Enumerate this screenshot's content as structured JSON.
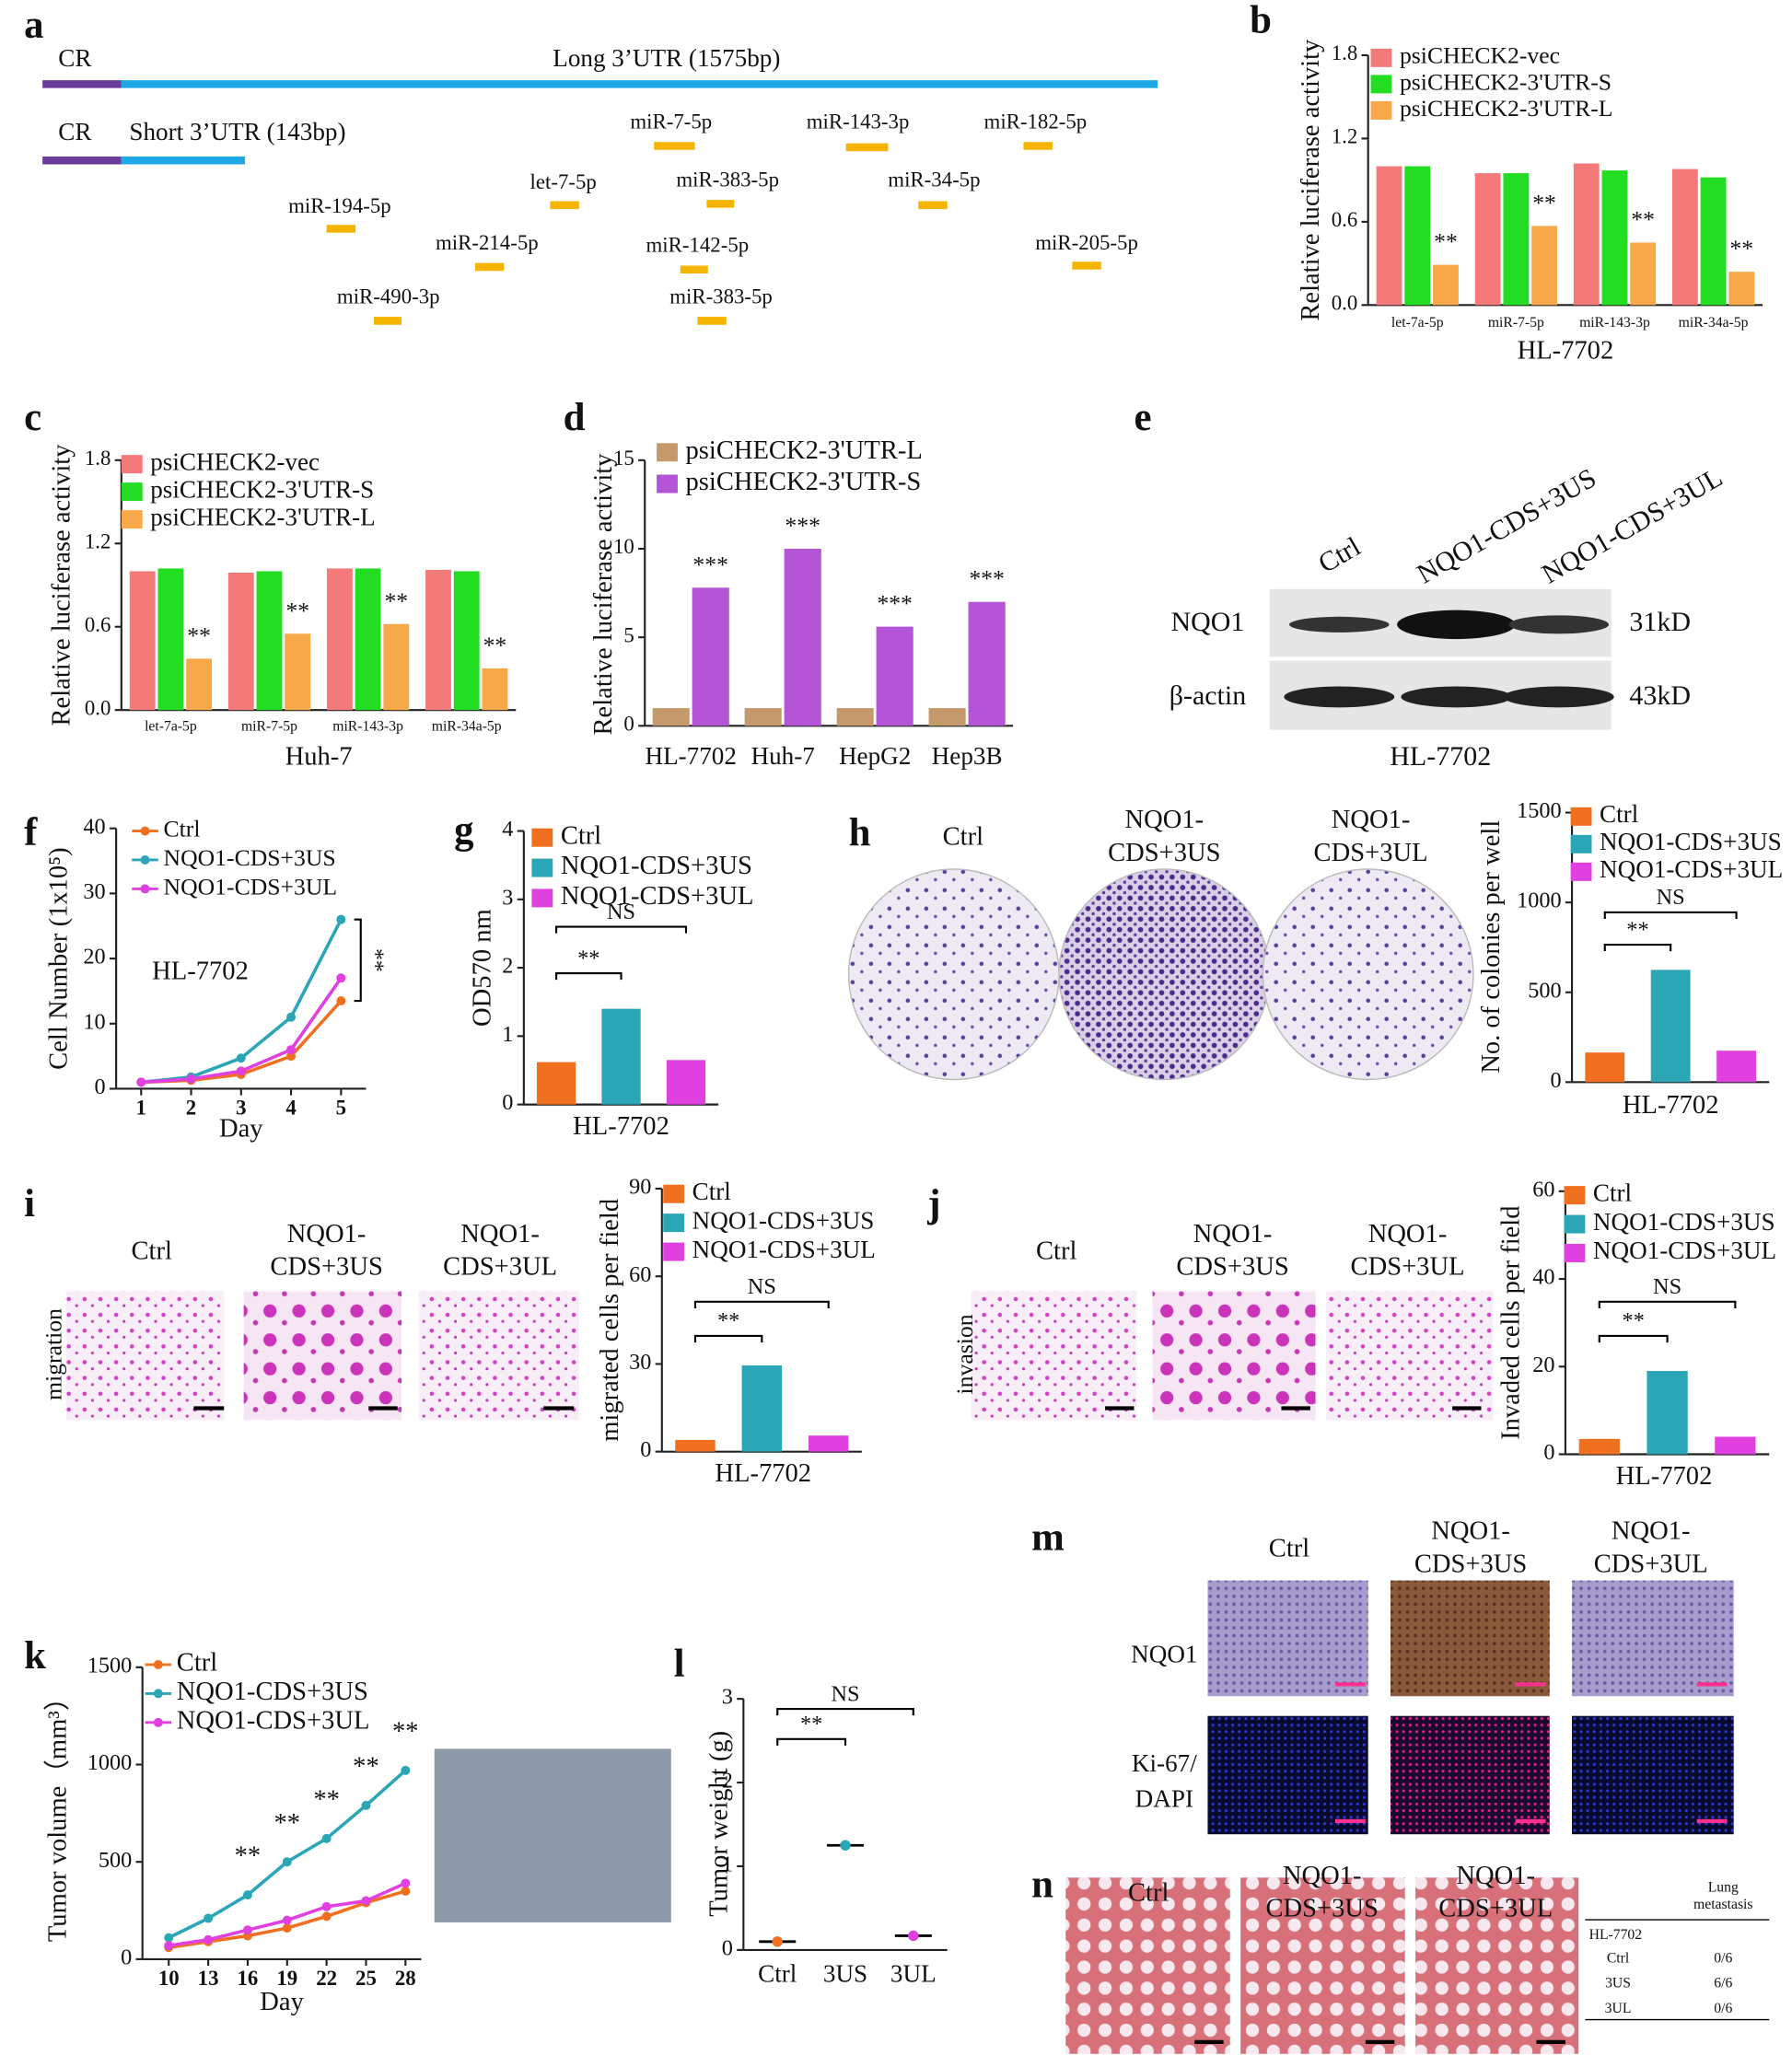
{
  "panel_labels": [
    "a",
    "b",
    "c",
    "d",
    "e",
    "f",
    "g",
    "h",
    "i",
    "j",
    "k",
    "l",
    "m",
    "n"
  ],
  "diagram_a": {
    "long": {
      "cr": "CR",
      "label": "Long  3’UTR  (1575bp)"
    },
    "short": {
      "cr": "CR",
      "label": "Short 3’UTR  (143bp)"
    },
    "mirnas": [
      "miR-7-5p",
      "miR-143-3p",
      "miR-182-5p",
      "let-7-5p",
      "miR-383-5p",
      "miR-34-5p",
      "miR-194-5p",
      "miR-214-5p",
      "miR-142-5p",
      "miR-205-5p",
      "miR-490-3p",
      "miR-383-5p"
    ]
  },
  "blot_e": {
    "lanes": [
      "Ctrl",
      "NQO1-CDS+3US",
      "NQO1-CDS+3UL"
    ],
    "rows": [
      {
        "protein": "NQO1",
        "size": "31kD"
      },
      {
        "protein": "β-actin",
        "size": "43kD"
      }
    ],
    "cell_line": "HL-7702"
  },
  "images_h": {
    "columns": [
      [
        "Ctrl"
      ],
      [
        "NQO1-",
        "CDS+3US"
      ],
      [
        "NQO1-",
        "CDS+3UL"
      ]
    ]
  },
  "images_i": {
    "row": "migration",
    "columns": [
      [
        "Ctrl"
      ],
      [
        "NQO1-",
        "CDS+3US"
      ],
      [
        "NQO1-",
        "CDS+3UL"
      ]
    ]
  },
  "images_j": {
    "row": "invasion",
    "columns": [
      [
        "Ctrl"
      ],
      [
        "NQO1-",
        "CDS+3US"
      ],
      [
        "NQO1-",
        "CDS+3UL"
      ]
    ]
  },
  "images_m": {
    "columns": [
      [
        "Ctrl"
      ],
      [
        "NQO1-",
        "CDS+3US"
      ],
      [
        "NQO1-",
        "CDS+3UL"
      ]
    ],
    "rows": [
      [
        "NQO1"
      ],
      [
        "Ki-67/",
        "DAPI"
      ]
    ]
  },
  "images_n": {
    "columns": [
      [
        "Ctrl"
      ],
      [
        "NQO1-",
        "CDS+3US"
      ],
      [
        "NQO1-",
        "CDS+3UL"
      ]
    ]
  },
  "table_n": {
    "header": [
      "Lung",
      "metastasis"
    ],
    "group": "HL-7702",
    "rows": [
      [
        "Ctrl",
        "0/6"
      ],
      [
        "3US",
        "6/6"
      ],
      [
        "3UL",
        "0/6"
      ]
    ]
  },
  "chart_data": [
    {
      "type": "bar",
      "y_label": "Relative luciferase activity",
      "x_label": "HL-7702",
      "categories": [
        "let-7a-5p",
        "miR-7-5p",
        "miR-143-3p",
        "miR-34a-5p"
      ],
      "ylim": [
        0,
        1.8
      ],
      "yticks": [
        {
          "value": 0,
          "label": "0.0"
        },
        0.6,
        1.2,
        1.8
      ],
      "series": [
        {
          "name": "psiCHECK2-vec",
          "color": "#f47a7a",
          "values": [
            1.0,
            0.95,
            1.02,
            0.98
          ]
        },
        {
          "name": "psiCHECK2-3'UTR-S",
          "color": "#22dd22",
          "values": [
            1.0,
            0.95,
            0.97,
            0.92
          ]
        },
        {
          "name": "psiCHECK2-3'UTR-L",
          "color": "#f7a94a",
          "values": [
            0.29,
            0.57,
            0.45,
            0.24
          ],
          "sig_labels": [
            "**",
            "**",
            "**",
            "**"
          ]
        }
      ]
    },
    {
      "type": "bar",
      "y_label": "Relative luciferase activity",
      "x_label": "Huh-7",
      "categories": [
        "let-7a-5p",
        "miR-7-5p",
        "miR-143-3p",
        "miR-34a-5p"
      ],
      "ylim": [
        0,
        1.8
      ],
      "yticks": [
        {
          "value": 0,
          "label": "0.0"
        },
        0.6,
        1.2,
        1.8
      ],
      "series": [
        {
          "name": "psiCHECK2-vec",
          "color": "#f47a7a",
          "values": [
            1.0,
            0.99,
            1.02,
            1.01
          ]
        },
        {
          "name": "psiCHECK2-3'UTR-S",
          "color": "#22dd22",
          "values": [
            1.02,
            1.0,
            1.02,
            1.0
          ]
        },
        {
          "name": "psiCHECK2-3'UTR-L",
          "color": "#f7a94a",
          "values": [
            0.37,
            0.55,
            0.62,
            0.3
          ],
          "sig_labels": [
            "**",
            "**",
            "**",
            "**"
          ]
        }
      ]
    },
    {
      "type": "bar",
      "y_label": "Relative luciferase activity",
      "categories": [
        "HL-7702",
        "Huh-7",
        "HepG2",
        "Hep3B"
      ],
      "ylim": [
        0,
        15
      ],
      "yticks": [
        0,
        5,
        10,
        15
      ],
      "series": [
        {
          "name": "psiCHECK2-3'UTR-L",
          "color": "#c49a6c",
          "values": [
            1,
            1,
            1,
            1
          ]
        },
        {
          "name": "psiCHECK2-3'UTR-S",
          "color": "#b454d6",
          "values": [
            7.8,
            10.0,
            5.6,
            7.0
          ],
          "sig_labels": [
            "***",
            "***",
            "***",
            "***"
          ]
        }
      ]
    },
    {
      "type": "line",
      "y_label": "Cell Number (1x10⁵)",
      "x_label": "Day",
      "annotation": "HL-7702",
      "brackets": [
        "**"
      ],
      "x": [
        1,
        2,
        3,
        4,
        5
      ],
      "xlim": [
        0.5,
        5.5
      ],
      "xticks": [
        1,
        2,
        3,
        4,
        5
      ],
      "ylim": [
        0,
        40
      ],
      "yticks": [
        0,
        10,
        20,
        30,
        40
      ],
      "series": [
        {
          "name": "Ctrl",
          "color": "#f07020",
          "values": [
            1,
            1.3,
            2.2,
            5,
            13.5
          ]
        },
        {
          "name": "NQO1-CDS+3US",
          "color": "#2aa6b6",
          "values": [
            1,
            1.8,
            4.7,
            11,
            26
          ]
        },
        {
          "name": "NQO1-CDS+3UL",
          "color": "#e040e0",
          "values": [
            1,
            1.5,
            2.7,
            6,
            17
          ]
        }
      ]
    },
    {
      "type": "bar",
      "y_label": "OD570 nm",
      "x_label": "HL-7702",
      "brackets": [
        "**",
        "NS"
      ],
      "ylim": [
        0,
        4
      ],
      "yticks": [
        0,
        1,
        2,
        3,
        4
      ],
      "series": [
        {
          "name": "Ctrl",
          "color": "#f07020",
          "values": [
            0.62
          ]
        },
        {
          "name": "NQO1-CDS+3US",
          "color": "#2aa6b6",
          "values": [
            1.4
          ]
        },
        {
          "name": "NQO1-CDS+3UL",
          "color": "#e040e0",
          "values": [
            0.65
          ]
        }
      ]
    },
    {
      "type": "bar",
      "y_label": "No. of colonies per well",
      "x_label": "HL-7702",
      "brackets": [
        "**",
        "NS"
      ],
      "ylim": [
        0,
        1500
      ],
      "yticks": [
        0,
        500,
        1000,
        1500
      ],
      "series": [
        {
          "name": "Ctrl",
          "color": "#f07020",
          "values": [
            165
          ]
        },
        {
          "name": "NQO1-CDS+3US",
          "color": "#2aa6b6",
          "values": [
            625
          ]
        },
        {
          "name": "NQO1-CDS+3UL",
          "color": "#e040e0",
          "values": [
            175
          ]
        }
      ]
    },
    {
      "type": "bar",
      "y_label": "migrated cells per field",
      "x_label": "HL-7702",
      "brackets": [
        "**",
        "NS"
      ],
      "ylim": [
        0,
        90
      ],
      "yticks": [
        0,
        30,
        60,
        90
      ],
      "series": [
        {
          "name": "Ctrl",
          "color": "#f07020",
          "values": [
            4
          ]
        },
        {
          "name": "NQO1-CDS+3US",
          "color": "#2aa6b6",
          "values": [
            29.5
          ]
        },
        {
          "name": "NQO1-CDS+3UL",
          "color": "#e040e0",
          "values": [
            5.5
          ]
        }
      ]
    },
    {
      "type": "bar",
      "y_label": "Invaded cells per field",
      "x_label": "HL-7702",
      "brackets": [
        "**",
        "NS"
      ],
      "ylim": [
        0,
        60
      ],
      "yticks": [
        0,
        20,
        40,
        60
      ],
      "series": [
        {
          "name": "Ctrl",
          "color": "#f07020",
          "values": [
            3.5
          ]
        },
        {
          "name": "NQO1-CDS+3US",
          "color": "#2aa6b6",
          "values": [
            19
          ]
        },
        {
          "name": "NQO1-CDS+3UL",
          "color": "#e040e0",
          "values": [
            4
          ]
        }
      ]
    },
    {
      "type": "line",
      "y_label": "Tumor volume（mm³）",
      "x_label": "Day",
      "x": [
        10,
        13,
        16,
        19,
        22,
        25,
        28
      ],
      "xlim": [
        8,
        29.2
      ],
      "xticks": [
        10,
        13,
        16,
        19,
        22,
        25,
        28
      ],
      "ylim": [
        0,
        1500
      ],
      "yticks": [
        0,
        500,
        1000,
        1500
      ],
      "series": [
        {
          "name": "Ctrl",
          "color": "#f07020",
          "values": [
            60,
            90,
            120,
            160,
            220,
            290,
            350
          ]
        },
        {
          "name": "NQO1-CDS+3US",
          "color": "#2aa6b6",
          "values": [
            110,
            210,
            330,
            500,
            620,
            790,
            970
          ],
          "sig_labels": [
            null,
            null,
            "**",
            "**",
            "**",
            "**",
            "**"
          ]
        },
        {
          "name": "NQO1-CDS+3UL",
          "color": "#e040e0",
          "values": [
            70,
            100,
            150,
            200,
            270,
            300,
            390
          ]
        }
      ]
    },
    {
      "type": "strip",
      "y_label": "Tumor weight (g)",
      "brackets": [
        "**",
        "NS"
      ],
      "categories": [
        "Ctrl",
        "3US",
        "3UL"
      ],
      "colors": [
        "#f07020",
        "#2aa6b6",
        "#e040e0"
      ],
      "ylim": [
        0,
        3
      ],
      "yticks": [
        0,
        1,
        2,
        3
      ],
      "values": [
        0.1,
        1.25,
        0.17
      ]
    }
  ]
}
